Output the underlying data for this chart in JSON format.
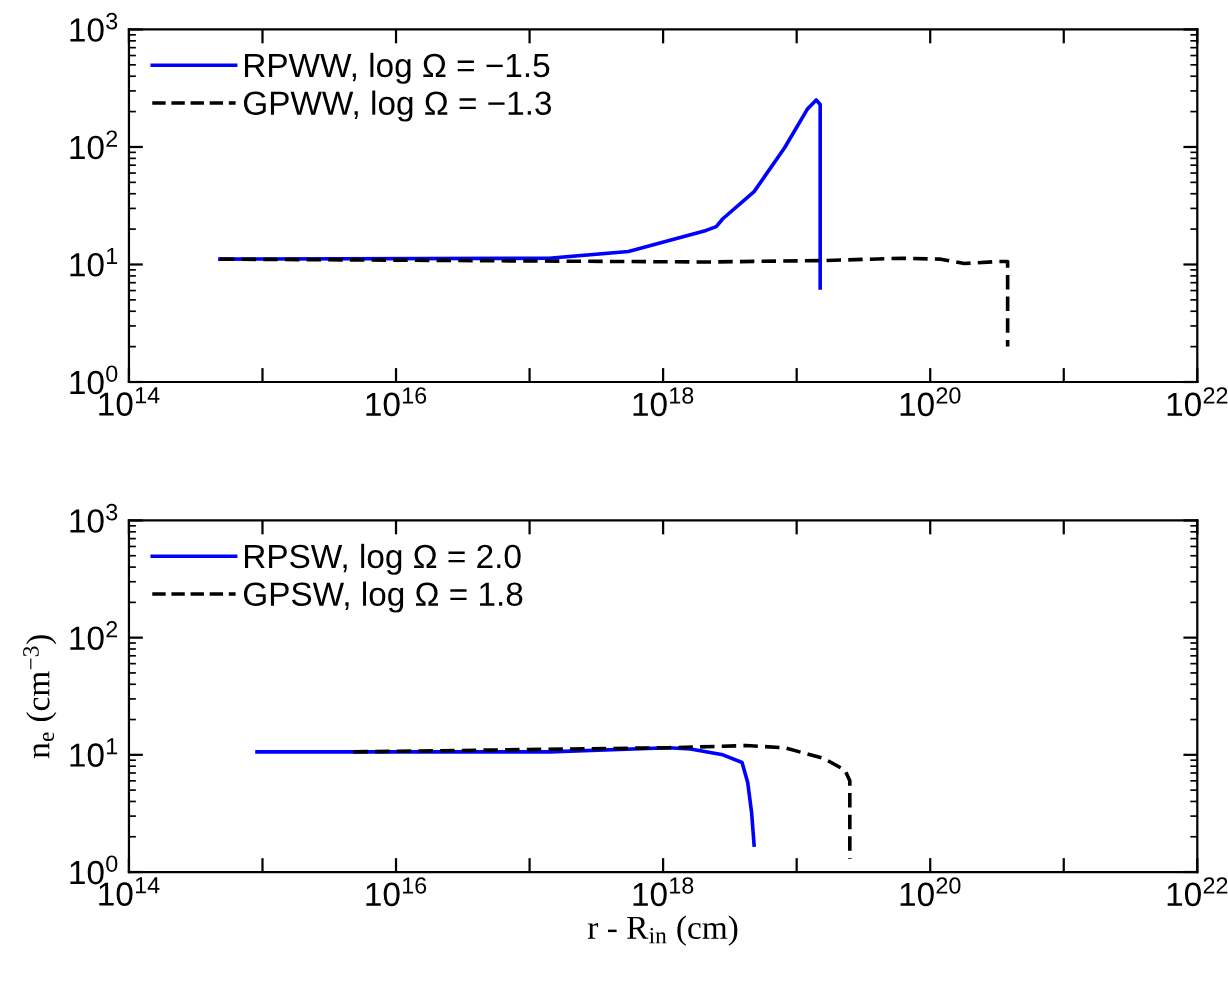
{
  "chart_data": [
    {
      "type": "line",
      "xlim": [
        100000000000000.0,
        1e+22
      ],
      "ylim": [
        1,
        1000
      ],
      "log": "xy",
      "legend": "top left",
      "grid": false,
      "tick_labels": true,
      "xticks": [
        {
          "value": 100000000000000.0,
          "label": "10$^{14}$"
        },
        {
          "value": 1000000000000000.0,
          "label": null
        },
        {
          "value": 1e+16,
          "label": "10$^{16}$"
        },
        {
          "value": 1e+17,
          "label": null
        },
        {
          "value": 1e+18,
          "label": "10$^{18}$"
        },
        {
          "value": 1e+19,
          "label": null
        },
        {
          "value": 1e+20,
          "label": "10$^{20}$"
        },
        {
          "value": 1e+21,
          "label": null
        },
        {
          "value": 1e+22,
          "label": "10$^{22}$"
        }
      ],
      "yticks": [
        {
          "value": 1,
          "label": "10$^{0}$"
        },
        {
          "value": 10,
          "label": "10$^{1}$"
        },
        {
          "value": 100,
          "label": "10$^{2}$"
        },
        {
          "value": 1000,
          "label": "10$^{3}$"
        }
      ],
      "series": [
        {
          "name": "RPWW, log Ω = −1.5",
          "color": "#0000ff",
          "line_style": "solid",
          "x": [
            480000000000000.0,
            1.4e+17,
            5.5e+17,
            2.1e+18,
            2.5e+18,
            2.8e+18,
            4.8e+18,
            8.1e+18,
            1.2e+19,
            1.4e+19,
            1.5e+19,
            1.5e+19
          ],
          "values": [
            11.1,
            11.3,
            12.9,
            19.5,
            21,
            24.5,
            41.7,
            98,
            209,
            251,
            230,
            6.3
          ]
        },
        {
          "name": "GPWW, log Ω = −1.3",
          "color": "#000000",
          "line_style": "dashed",
          "x": [
            480000000000000.0,
            2.1e+18,
            1.6e+19,
            6.2e+19,
            1.2e+20,
            1.8e+20,
            3.2e+20,
            3.8e+20,
            3.8e+20
          ],
          "values": [
            11.1,
            10.5,
            10.8,
            11.3,
            11.1,
            10.2,
            10.6,
            10.6,
            2.0
          ]
        }
      ]
    },
    {
      "type": "line",
      "xlim": [
        100000000000000.0,
        1e+22
      ],
      "ylim": [
        1,
        1000
      ],
      "log": "xy",
      "legend": "top left",
      "grid": false,
      "xlabel": "r - R$_{in}$ (cm)",
      "ylabel": "n$_{e}$ (cm$^{−3}$)",
      "xticks": [
        {
          "value": 100000000000000.0,
          "label": "10$^{14}$"
        },
        {
          "value": 1000000000000000.0,
          "label": null
        },
        {
          "value": 1e+16,
          "label": "10$^{16}$"
        },
        {
          "value": 1e+17,
          "label": null
        },
        {
          "value": 1e+18,
          "label": "10$^{18}$"
        },
        {
          "value": 1e+19,
          "label": null
        },
        {
          "value": 1e+20,
          "label": "10$^{20}$"
        },
        {
          "value": 1e+21,
          "label": null
        },
        {
          "value": 1e+22,
          "label": "10$^{22}$"
        }
      ],
      "yticks": [
        {
          "value": 1,
          "label": "10$^{0}$"
        },
        {
          "value": 10,
          "label": "10$^{1}$"
        },
        {
          "value": 100,
          "label": "10$^{2}$"
        },
        {
          "value": 1000,
          "label": "10$^{3}$"
        }
      ],
      "series": [
        {
          "name": "RPSW, log Ω = 2.0",
          "color": "#0000ff",
          "line_style": "solid",
          "x": [
            910000000000000.0,
            1.4e+17,
            1.1e+18,
            1.6e+18,
            2.8e+18,
            3.9e+18,
            4.3e+18,
            4.6e+18,
            4.8e+18
          ],
          "values": [
            10.6,
            10.6,
            11.5,
            11.2,
            10,
            8.6,
            5.8,
            3.2,
            1.7
          ]
        },
        {
          "name": "GPSW, log Ω = 1.8",
          "color": "#000000",
          "line_style": "dashed",
          "x": [
            4800000000000000.0,
            1.1e+18,
            4.2e+18,
            8.1e+18,
            1.6e+19,
            2.3e+19,
            2.5e+19,
            2.5e+19
          ],
          "values": [
            10.6,
            11.5,
            12.0,
            11.5,
            9.3,
            7.4,
            6.0,
            1.3
          ]
        }
      ]
    }
  ]
}
